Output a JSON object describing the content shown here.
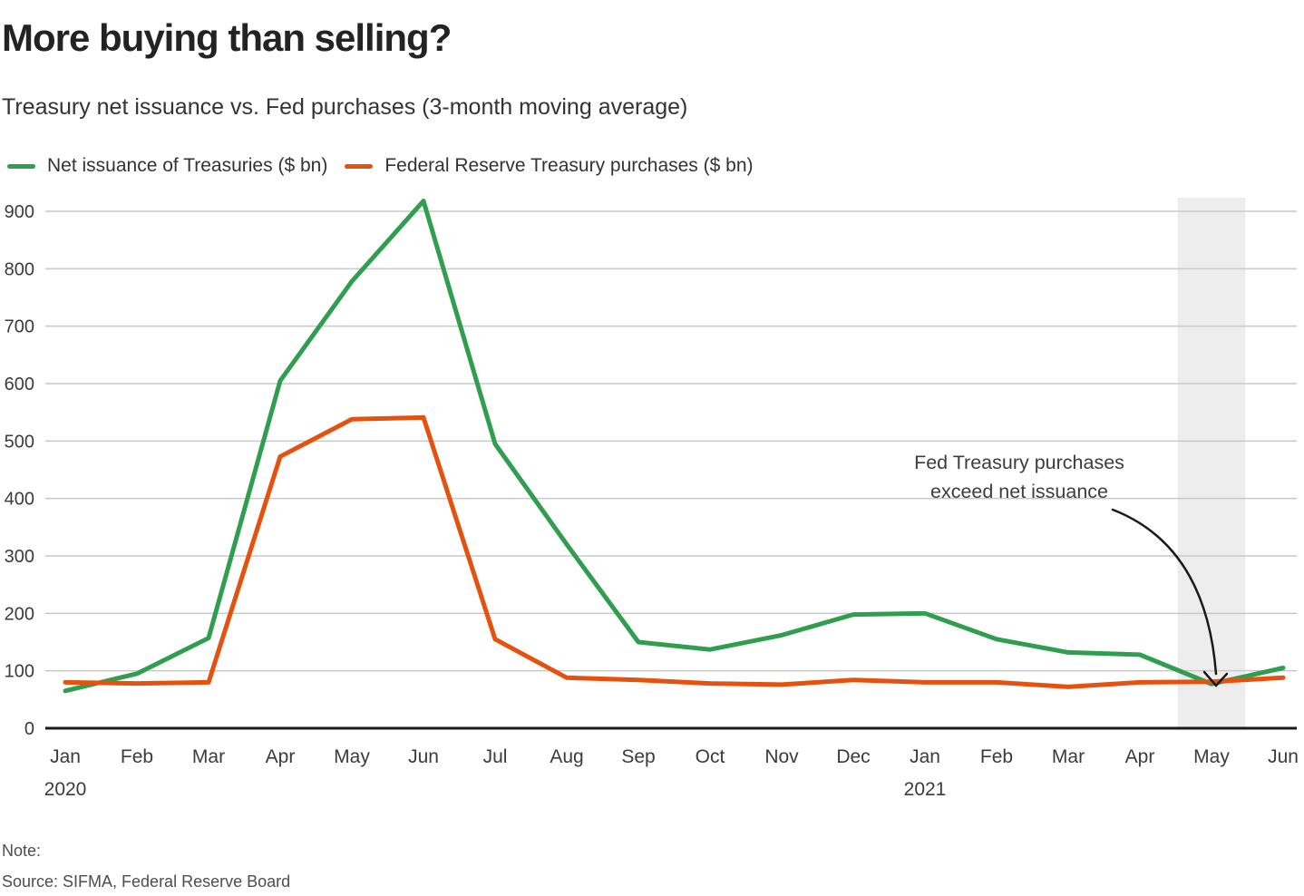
{
  "header": {
    "title": "More buying than selling?",
    "subtitle": "Treasury net issuance vs. Fed purchases (3-month moving average)"
  },
  "legend": [
    {
      "label": "Net issuance of Treasuries ($ bn)",
      "color": "#2f9e4e"
    },
    {
      "label": "Federal Reserve Treasury purchases ($ bn)",
      "color": "#e5520f"
    }
  ],
  "chart_data": {
    "type": "line",
    "categories": [
      "Jan",
      "Feb",
      "Mar",
      "Apr",
      "May",
      "Jun",
      "Jul",
      "Aug",
      "Sep",
      "Oct",
      "Nov",
      "Dec",
      "Jan",
      "Feb",
      "Mar",
      "Apr",
      "May",
      "Jun"
    ],
    "year_labels": [
      {
        "index": 0,
        "text": "2020"
      },
      {
        "index": 12,
        "text": "2021"
      }
    ],
    "series": [
      {
        "name": "Net issuance of Treasuries ($ bn)",
        "color": "#2f9e4e",
        "values": [
          65,
          95,
          157,
          605,
          778,
          918,
          495,
          320,
          150,
          137,
          162,
          198,
          200,
          155,
          132,
          128,
          77,
          105
        ]
      },
      {
        "name": "Federal Reserve Treasury purchases ($ bn)",
        "color": "#e5520f",
        "values": [
          80,
          78,
          80,
          473,
          538,
          541,
          155,
          88,
          84,
          78,
          76,
          84,
          80,
          80,
          72,
          80,
          81,
          88
        ]
      }
    ],
    "ylim": [
      0,
      920
    ],
    "yticks": [
      0,
      100,
      200,
      300,
      400,
      500,
      600,
      700,
      800,
      900
    ],
    "grid": "horizontal",
    "legend_position": "top",
    "highlight_band": {
      "month": "May 2021",
      "month_index": 16
    },
    "annotation": {
      "lines": [
        "Fed  Treasury purchases",
        "exceed net issuance"
      ],
      "target_month": "May 2021"
    }
  },
  "footer": {
    "note_label": "Note:",
    "source": "Source: SIFMA, Federal Reserve Board"
  },
  "colors": {
    "gridline": "#c9c9c9",
    "axis": "#1a1a1a",
    "band": "#ededed",
    "tick_text": "#3b3b3b",
    "annotation_text": "#3d3d3d",
    "arrow": "#1a1a1a"
  }
}
